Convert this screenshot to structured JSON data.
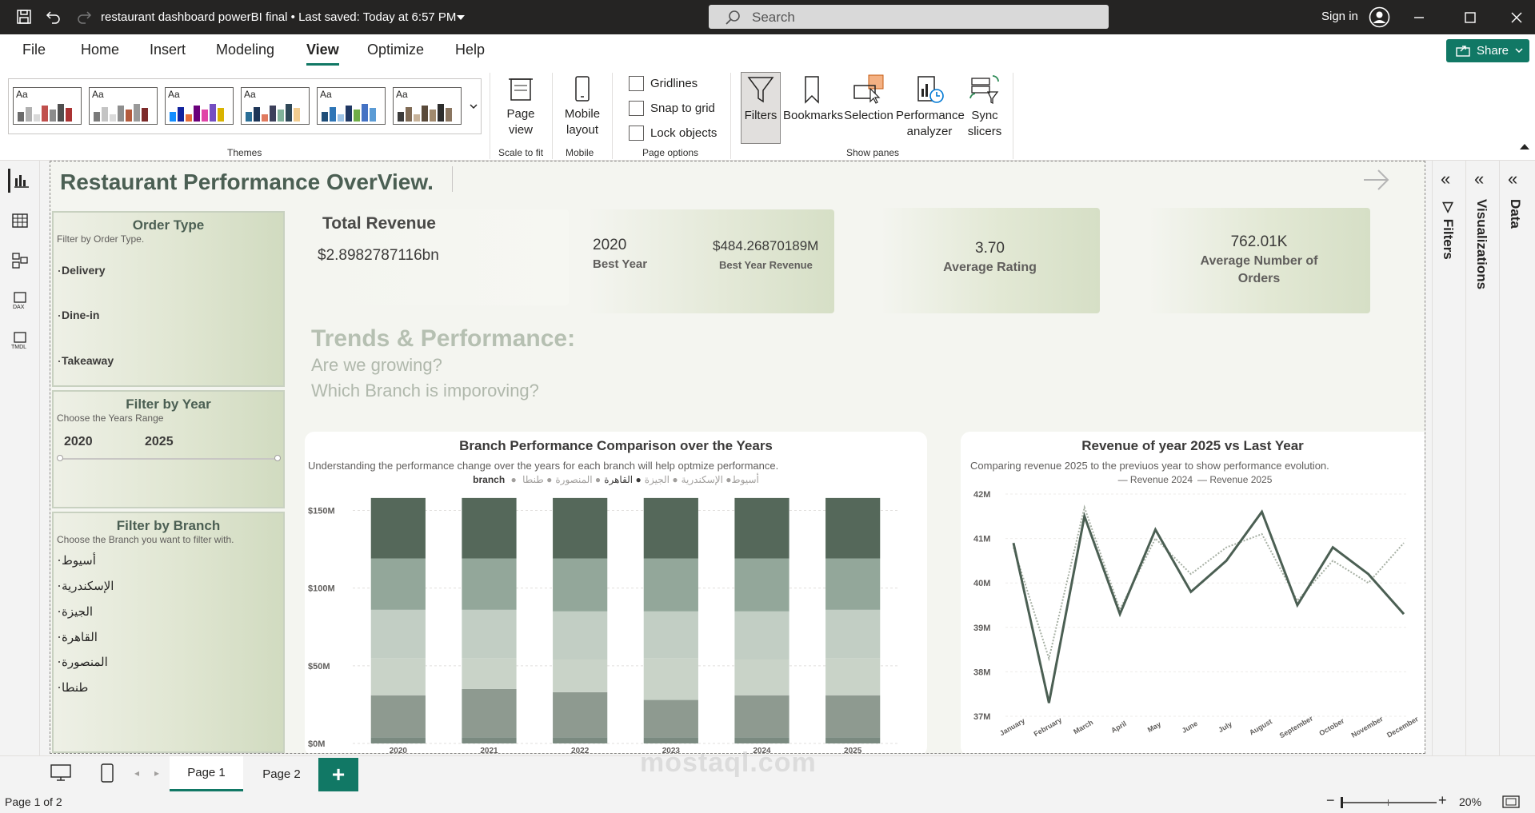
{
  "titlebar": {
    "filename": "restaurant dashboard powerBI final",
    "saved": "Last saved: Today at 6:57 PM",
    "search_placeholder": "Search",
    "signin": "Sign in"
  },
  "menu": [
    "File",
    "Home",
    "Insert",
    "Modeling",
    "View",
    "Optimize",
    "Help"
  ],
  "share_label": "Share",
  "ribbon": {
    "theme_aa": "Aa",
    "groups": {
      "themes": "Themes",
      "scale": "Scale to fit",
      "mobile": "Mobile",
      "page_options": "Page options",
      "show_panes": "Show panes"
    },
    "page_view": "Page view",
    "mobile_layout": "Mobile layout",
    "checkboxes": [
      "Gridlines",
      "Snap to grid",
      "Lock objects"
    ],
    "panes": [
      "Filters",
      "Bookmarks",
      "Selection",
      "Performance analyzer",
      "Sync slicers"
    ]
  },
  "report": {
    "title": "Restaurant Performance OverView.",
    "order_slicer": {
      "title": "Order Type",
      "subtitle": "Filter by Order Type.",
      "items": [
        "Delivery",
        "Dine-in",
        "Takeaway"
      ]
    },
    "year_slicer": {
      "title": "Filter by Year",
      "subtitle": "Choose the Years Range",
      "from": "2020",
      "to": "2025"
    },
    "branch_slicer": {
      "title": "Filter by Branch",
      "subtitle": "Choose the Branch you want to filter with.",
      "items": [
        "أسيوط",
        "الإسكندرية",
        "الجيزة",
        "القاهرة",
        "المنصورة",
        "طنطا"
      ]
    },
    "total_revenue": {
      "label": "Total Revenue",
      "value": "$2.8982787116bn"
    },
    "best_year": {
      "year": "2020",
      "year_label": "Best Year",
      "revenue": "$484.26870189M",
      "revenue_label": "Best Year Revenue"
    },
    "avg_rating": {
      "value": "3.70",
      "label": "Average Rating"
    },
    "avg_orders": {
      "value": "762.01K",
      "label": "Average Number of Orders"
    },
    "trends": {
      "heading": "Trends & Performance:",
      "q1": "Are we growing?",
      "q2": "Which Branch is imporoving?"
    }
  },
  "chart_data": [
    {
      "type": "bar",
      "title": "Branch Performance Comparison over the Years",
      "subtitle": "Understanding the performance change over the years for each branch will help optmize performance.",
      "legend_title": "branch",
      "categories": [
        "2020",
        "2021",
        "2022",
        "2023",
        "2024",
        "2025"
      ],
      "y_ticks": [
        "$150M",
        "$100M",
        "$50M",
        "$0M"
      ],
      "ylim": [
        0,
        160
      ],
      "stacked": true,
      "series": [
        {
          "name": "أسيوط",
          "values": [
            4,
            4,
            4,
            4,
            4,
            4
          ]
        },
        {
          "name": "الإسكندرية",
          "values": [
            27,
            31,
            29,
            24,
            27,
            27
          ]
        },
        {
          "name": "الجيزة",
          "values": [
            24,
            20,
            21,
            27,
            23,
            24
          ]
        },
        {
          "name": "القاهرة",
          "values": [
            39,
            39,
            39,
            39,
            39,
            39
          ]
        },
        {
          "name": "المنصورة",
          "values": [
            31,
            31,
            31,
            30,
            31,
            31
          ]
        },
        {
          "name": "طنطا",
          "values": [
            33,
            33,
            34,
            34,
            34,
            33
          ]
        }
      ]
    },
    {
      "type": "line",
      "title": "Revenue of year 2025 vs Last Year",
      "subtitle": "Comparing revenue 2025 to the previuos year to show performance evolution.",
      "x": [
        "January",
        "February",
        "March",
        "April",
        "May",
        "June",
        "July",
        "August",
        "September",
        "October",
        "November",
        "December"
      ],
      "y_ticks": [
        "42M",
        "41M",
        "40M",
        "39M",
        "38M",
        "37M"
      ],
      "ylim": [
        37,
        42
      ],
      "series": [
        {
          "name": "Revenue 2024",
          "color": "#a7b0a4",
          "values": [
            40.8,
            38.3,
            41.7,
            39.4,
            41.0,
            40.2,
            40.8,
            41.1,
            39.6,
            40.5,
            40.0,
            40.9
          ]
        },
        {
          "name": "Revenue 2025",
          "color": "#4b5f53",
          "values": [
            40.9,
            37.3,
            41.5,
            39.3,
            41.2,
            39.8,
            40.5,
            41.6,
            39.5,
            40.8,
            40.2,
            39.3
          ]
        }
      ]
    }
  ],
  "pane_titles": [
    "Filters",
    "Visualizations",
    "Data"
  ],
  "pages": [
    "Page 1",
    "Page 2"
  ],
  "add_page": "+",
  "status": {
    "page": "Page 1 of 2",
    "zoom": "20%"
  },
  "watermark": "mostaql.com",
  "colors": {
    "accent": "#117865",
    "titlebar": "#252423",
    "report_green": "#4b5f53"
  }
}
